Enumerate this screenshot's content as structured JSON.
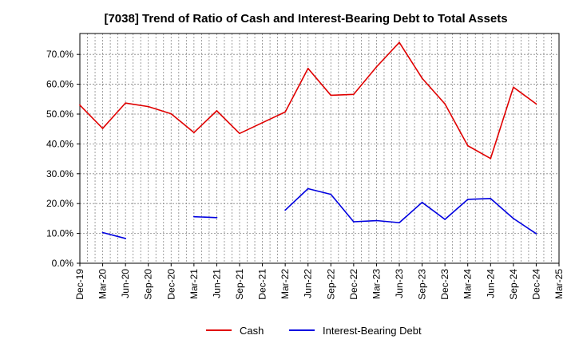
{
  "chart_data": {
    "type": "line",
    "title": "[7038]  Trend of Ratio of Cash and Interest-Bearing Debt to Total Assets",
    "xlabel": "",
    "ylabel": "",
    "ylim": [
      0,
      77
    ],
    "y_ticks": [
      0,
      10,
      20,
      30,
      40,
      50,
      60,
      70
    ],
    "y_tick_labels": [
      "0.0%",
      "10.0%",
      "20.0%",
      "30.0%",
      "40.0%",
      "50.0%",
      "60.0%",
      "70.0%"
    ],
    "x_tick_labels": [
      "Dec-19",
      "Mar-20",
      "Jun-20",
      "Sep-20",
      "Dec-20",
      "Mar-21",
      "Jun-21",
      "Sep-21",
      "Dec-21",
      "Mar-22",
      "Jun-22",
      "Sep-22",
      "Dec-22",
      "Mar-23",
      "Jun-23",
      "Sep-23",
      "Dec-23",
      "Mar-24",
      "Jun-24",
      "Sep-24",
      "Dec-24",
      "Mar-25"
    ],
    "x": [
      "Dec-19",
      "Mar-20",
      "Jun-20",
      "Sep-20",
      "Dec-20",
      "Mar-21",
      "Jun-21",
      "Sep-21",
      "Dec-21",
      "Mar-22",
      "Jun-22",
      "Sep-22",
      "Dec-22",
      "Mar-23",
      "Jun-23",
      "Sep-23",
      "Dec-23",
      "Mar-24",
      "Jun-24",
      "Sep-24",
      "Dec-24"
    ],
    "grid": true,
    "legend_position": "bottom-center",
    "series": [
      {
        "name": "Cash",
        "color": "#e00000",
        "values": [
          53.0,
          45.2,
          53.7,
          52.5,
          50.1,
          43.8,
          51.1,
          43.5,
          47.1,
          50.7,
          65.3,
          56.3,
          56.6,
          65.8,
          74.0,
          62.0,
          53.4,
          39.4,
          35.1,
          59.0,
          53.4
        ]
      },
      {
        "name": "Interest-Bearing Debt",
        "color": "#0000e0",
        "values": [
          null,
          10.3,
          8.3,
          null,
          null,
          15.6,
          15.3,
          null,
          null,
          17.8,
          25.0,
          23.1,
          13.9,
          14.3,
          13.6,
          20.4,
          14.7,
          21.4,
          21.7,
          15.0,
          9.9
        ]
      }
    ]
  }
}
